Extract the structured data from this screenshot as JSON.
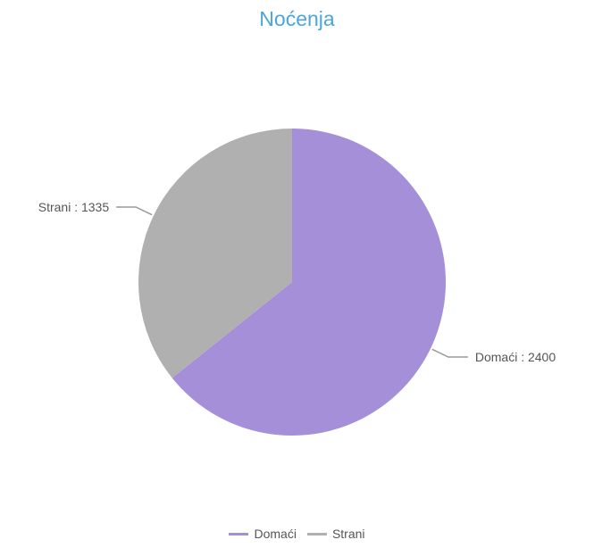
{
  "chart_data": {
    "type": "pie",
    "title": "Noćenja",
    "categories": [
      "Domaći",
      "Strani"
    ],
    "values": [
      2400,
      1335
    ],
    "colors": [
      "#a58fd8",
      "#b0b0b0"
    ],
    "labels": [
      "Domaći : 2400",
      "Strani : 1335"
    ],
    "legend_position": "bottom"
  },
  "legend": {
    "items": [
      {
        "label": "Domaći",
        "color": "#a58fd8"
      },
      {
        "label": "Strani",
        "color": "#b0b0b0"
      }
    ]
  }
}
